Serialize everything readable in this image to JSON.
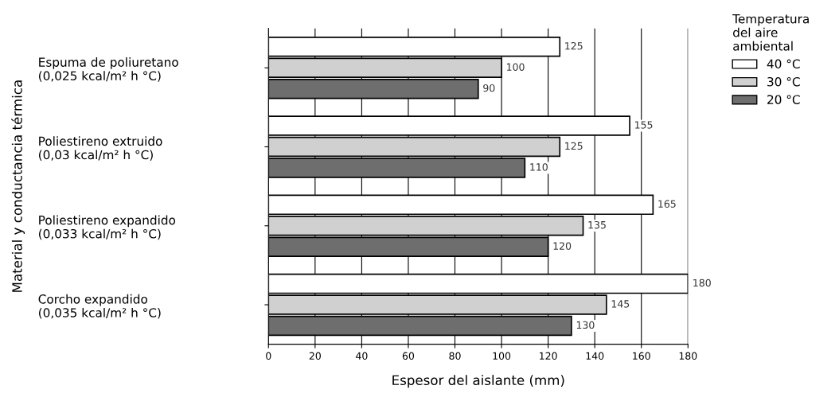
{
  "chart_data": {
    "type": "bar",
    "orientation": "horizontal",
    "xlabel": "Espesor del aislante (mm)",
    "ylabel": "Material y conductancia térmica",
    "legend_title": "Temperatura\ndel aire\nambiental",
    "categories": [
      "Espuma de poliuretano\n(0,025 kcal/m² h °C)",
      "Poliestireno extruido\n(0,03 kcal/m² h °C)",
      "Poliestireno expandido\n(0,033 kcal/m² h °C)",
      "Corcho expandido\n(0,035 kcal/m² h °C)"
    ],
    "series": [
      {
        "name": "40 °C",
        "color": "#ffffff",
        "values": [
          125,
          155,
          165,
          180
        ]
      },
      {
        "name": "30 °C",
        "color": "#d0d0d0",
        "values": [
          100,
          125,
          135,
          145
        ]
      },
      {
        "name": "20 °C",
        "color": "#6e6e6e",
        "values": [
          90,
          110,
          120,
          130
        ]
      }
    ],
    "xlim": [
      0,
      180
    ],
    "xticks": [
      0,
      20,
      40,
      60,
      80,
      100,
      120,
      140,
      160,
      180
    ],
    "grid": "x",
    "legend": "top right",
    "data_labels": true
  }
}
